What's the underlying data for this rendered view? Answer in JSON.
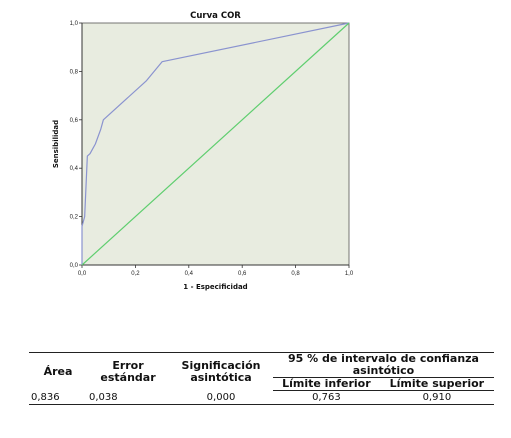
{
  "chart_data": {
    "type": "line",
    "title": "Curva COR",
    "xlabel": "1 - Especificidad",
    "ylabel": "Sensibilidad",
    "xlim": [
      0,
      1
    ],
    "ylim": [
      0,
      1
    ],
    "xticks": [
      "0,0",
      "0,2",
      "0,4",
      "0,6",
      "0,8",
      "1,0"
    ],
    "yticks": [
      "0,0",
      "0,2",
      "0,4",
      "0,6",
      "0,8",
      "1,0"
    ],
    "grid": false,
    "background_color": "#e8ece0",
    "series": [
      {
        "color": "#8a93cf",
        "x": [
          0,
          0,
          0.01,
          0.02,
          0.03,
          0.04,
          0.05,
          0.07,
          0.08,
          0.24,
          0.3,
          1
        ],
        "y": [
          0,
          0.16,
          0.2,
          0.45,
          0.46,
          0.48,
          0.5,
          0.56,
          0.6,
          0.76,
          0.84,
          1
        ]
      },
      {
        "color": "#5fce6f",
        "x": [
          0,
          1
        ],
        "y": [
          0,
          1
        ]
      }
    ]
  },
  "table": {
    "headers": {
      "area": "Área",
      "error": "Error estándar",
      "significance": "Significación asintótica",
      "interval": "95 % de intervalo de confianza asintótico",
      "lower": "Límite inferior",
      "upper": "Límite superior"
    },
    "row": {
      "area": "0,836",
      "error": "0,038",
      "significance": "0,000",
      "lower": "0,763",
      "upper": "0,910"
    }
  }
}
